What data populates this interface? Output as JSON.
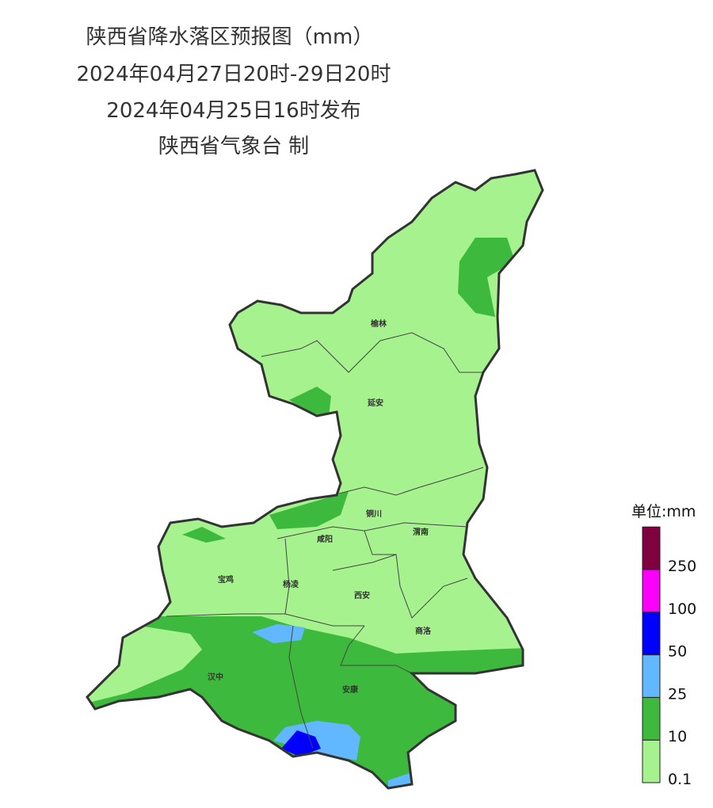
{
  "header": {
    "title": "陕西省降水落区预报图（mm）",
    "period": "2024年04月27日20时-29日20时",
    "issued": "2024年04月25日16时发布",
    "producer": "陕西省气象台 制"
  },
  "cities": [
    {
      "name": "榆林"
    },
    {
      "name": "延安"
    },
    {
      "name": "铜川"
    },
    {
      "name": "咸阳"
    },
    {
      "name": "渭南"
    },
    {
      "name": "宝鸡"
    },
    {
      "name": "杨凌"
    },
    {
      "name": "西安"
    },
    {
      "name": "商洛"
    },
    {
      "name": "汉中"
    },
    {
      "name": "安康"
    }
  ],
  "legend": {
    "title": "单位:mm",
    "items": [
      {
        "label": "0.1",
        "color": "#a6f28f"
      },
      {
        "label": "10",
        "color": "#3dba3d"
      },
      {
        "label": "25",
        "color": "#61b8ff"
      },
      {
        "label": "50",
        "color": "#0000fe"
      },
      {
        "label": "100",
        "color": "#fa00fa"
      },
      {
        "label": "250",
        "color": "#800040"
      }
    ]
  }
}
